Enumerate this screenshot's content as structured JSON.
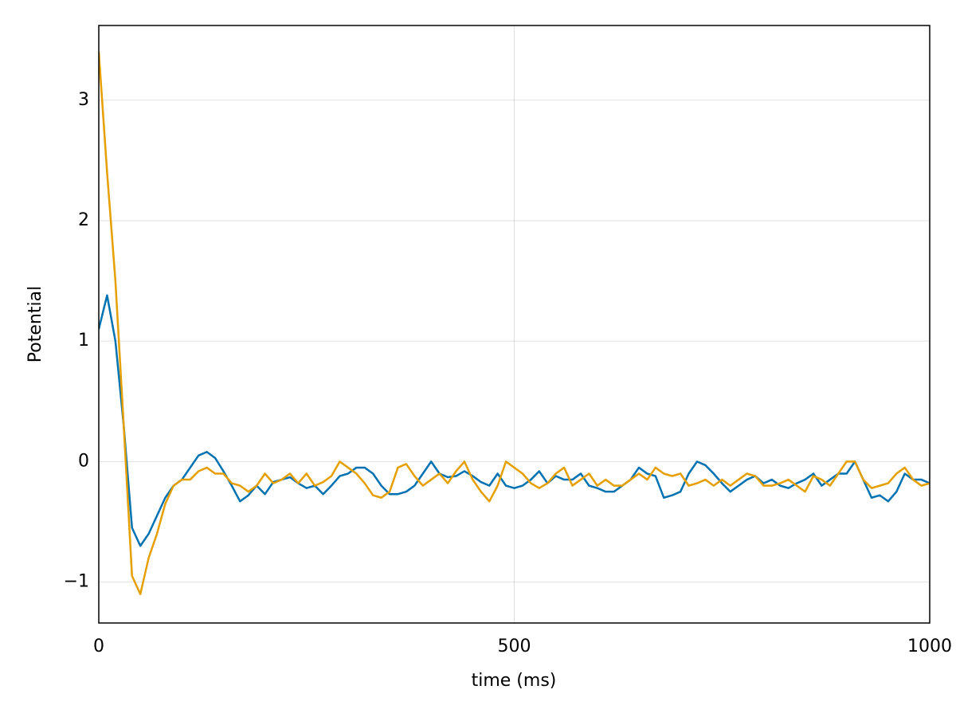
{
  "chart_data": {
    "type": "line",
    "x_label": "time (ms)",
    "y_label": "Potential",
    "x": [
      0,
      10,
      20,
      30,
      40,
      50,
      60,
      70,
      80,
      90,
      100,
      110,
      120,
      130,
      140,
      150,
      160,
      170,
      180,
      190,
      200,
      210,
      220,
      230,
      240,
      250,
      260,
      270,
      280,
      290,
      300,
      310,
      320,
      330,
      340,
      350,
      360,
      370,
      380,
      390,
      400,
      410,
      420,
      430,
      440,
      450,
      460,
      470,
      480,
      490,
      500,
      510,
      520,
      530,
      540,
      550,
      560,
      570,
      580,
      590,
      600,
      610,
      620,
      630,
      640,
      650,
      660,
      670,
      680,
      690,
      700,
      710,
      720,
      730,
      740,
      750,
      760,
      770,
      780,
      790,
      800,
      810,
      820,
      830,
      840,
      850,
      860,
      870,
      880,
      890,
      900,
      910,
      920,
      930,
      940,
      950,
      960,
      970,
      980,
      990,
      1000
    ],
    "series": [
      {
        "color": "#0072b2",
        "values": [
          1.1,
          1.38,
          1.0,
          0.3,
          -0.55,
          -0.7,
          -0.6,
          -0.45,
          -0.3,
          -0.2,
          -0.15,
          -0.05,
          0.05,
          0.08,
          0.03,
          -0.08,
          -0.2,
          -0.33,
          -0.28,
          -0.2,
          -0.27,
          -0.17,
          -0.15,
          -0.13,
          -0.18,
          -0.22,
          -0.2,
          -0.27,
          -0.2,
          -0.12,
          -0.1,
          -0.05,
          -0.05,
          -0.1,
          -0.2,
          -0.27,
          -0.27,
          -0.25,
          -0.2,
          -0.1,
          0,
          -0.1,
          -0.13,
          -0.12,
          -0.08,
          -0.12,
          -0.17,
          -0.2,
          -0.1,
          -0.2,
          -0.22,
          -0.2,
          -0.15,
          -0.08,
          -0.18,
          -0.12,
          -0.15,
          -0.15,
          -0.1,
          -0.2,
          -0.22,
          -0.25,
          -0.25,
          -0.2,
          -0.15,
          -0.05,
          -0.1,
          -0.12,
          -0.3,
          -0.28,
          -0.25,
          -0.1,
          0,
          -0.03,
          -0.1,
          -0.18,
          -0.25,
          -0.2,
          -0.15,
          -0.12,
          -0.18,
          -0.15,
          -0.2,
          -0.22,
          -0.18,
          -0.15,
          -0.1,
          -0.2,
          -0.15,
          -0.1,
          -0.1,
          0,
          -0.15,
          -0.3,
          -0.28,
          -0.33,
          -0.25,
          -0.1,
          -0.15,
          -0.15,
          -0.18
        ]
      },
      {
        "color": "#e69f00",
        "values": [
          3.4,
          2.4,
          1.5,
          0.3,
          -0.95,
          -1.1,
          -0.8,
          -0.6,
          -0.35,
          -0.2,
          -0.15,
          -0.15,
          -0.08,
          -0.05,
          -0.1,
          -0.1,
          -0.18,
          -0.2,
          -0.25,
          -0.2,
          -0.1,
          -0.18,
          -0.15,
          -0.1,
          -0.18,
          -0.1,
          -0.2,
          -0.17,
          -0.12,
          0,
          -0.05,
          -0.1,
          -0.18,
          -0.28,
          -0.3,
          -0.25,
          -0.05,
          -0.02,
          -0.12,
          -0.2,
          -0.15,
          -0.1,
          -0.18,
          -0.08,
          0,
          -0.15,
          -0.25,
          -0.33,
          -0.2,
          0,
          -0.05,
          -0.1,
          -0.18,
          -0.22,
          -0.18,
          -0.1,
          -0.05,
          -0.2,
          -0.15,
          -0.1,
          -0.2,
          -0.15,
          -0.2,
          -0.2,
          -0.15,
          -0.1,
          -0.15,
          -0.05,
          -0.1,
          -0.12,
          -0.1,
          -0.2,
          -0.18,
          -0.15,
          -0.2,
          -0.15,
          -0.2,
          -0.15,
          -0.1,
          -0.12,
          -0.2,
          -0.2,
          -0.18,
          -0.15,
          -0.2,
          -0.25,
          -0.12,
          -0.15,
          -0.2,
          -0.1,
          0,
          0,
          -0.15,
          -0.22,
          -0.2,
          -0.18,
          -0.1,
          -0.05,
          -0.15,
          -0.2,
          -0.18
        ]
      }
    ],
    "xlim": [
      0,
      1000
    ],
    "ylim": [
      -1.34,
      3.62
    ],
    "xticks": [
      0,
      500,
      1000
    ],
    "yticks": [
      {
        "value": -1,
        "label": "−1"
      },
      0,
      1,
      2,
      3
    ],
    "grid": true
  }
}
